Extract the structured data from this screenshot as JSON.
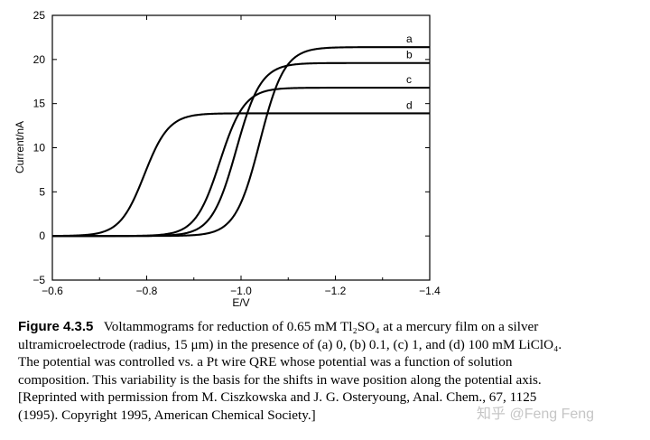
{
  "chart_data": {
    "type": "line",
    "xlabel": "E/V",
    "ylabel": "Current/nA",
    "xlim": [
      -0.6,
      -1.4
    ],
    "ylim": [
      -5,
      25
    ],
    "x_ticks": [
      "−0.6",
      "−0.8",
      "−1.0",
      "−1.2",
      "−1.4"
    ],
    "y_ticks": [
      "−5",
      "0",
      "5",
      "10",
      "15",
      "20",
      "25"
    ],
    "x_tick_values": [
      -0.6,
      -0.8,
      -1.0,
      -1.2,
      -1.4
    ],
    "y_tick_values": [
      -5,
      0,
      5,
      10,
      15,
      20,
      25
    ],
    "grid": false,
    "series": [
      {
        "name": "a",
        "plateau": 21.4,
        "half_wave_potential": -1.04
      },
      {
        "name": "b",
        "plateau": 19.6,
        "half_wave_potential": -0.99
      },
      {
        "name": "c",
        "plateau": 16.8,
        "half_wave_potential": -0.955
      },
      {
        "name": "d",
        "plateau": 13.9,
        "half_wave_potential": -0.795
      }
    ]
  },
  "caption": {
    "figure_label": "Figure 4.3.5",
    "lines": [
      "Voltammograms for reduction of 0.65 mM Tl₂SO₄ at a mercury film on a silver",
      "ultramicroelectrode (radius, 15 μm) in the presence of (a) 0, (b) 0.1, (c) 1, and (d) 100 mM LiClO₄.",
      "The potential was controlled vs. a Pt wire QRE whose potential was a function of solution",
      "composition. This variability is the basis for the shifts in wave position along the potential axis.",
      "[Reprinted with permission from M. Ciszkowska and J. G. Osteryoung, Anal. Chem., 67, 1125",
      "(1995). Copyright 1995, American Chemical Society.]"
    ]
  },
  "watermark": "知乎 @Feng Feng"
}
